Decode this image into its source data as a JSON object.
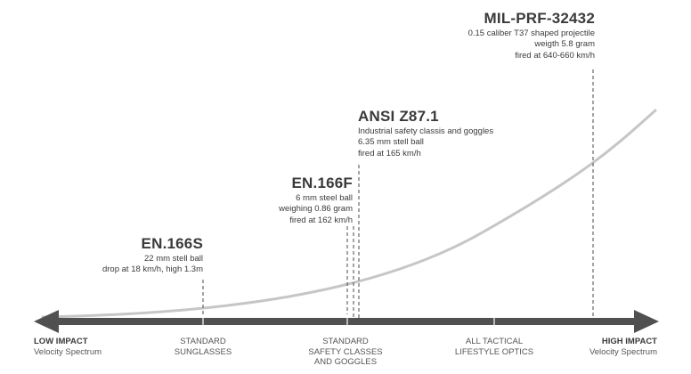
{
  "colors": {
    "axis": "#505050",
    "curve": "#c6c6c6",
    "leader": "#4a4a4a",
    "text": "#3a3a3a"
  },
  "standards": [
    {
      "id": "en166s",
      "title": "EN.166S",
      "lines": [
        "22 mm stell ball",
        "drop at 18 km/h, high 1.3m"
      ]
    },
    {
      "id": "en166f",
      "title": "EN.166F",
      "lines": [
        "6 mm steel ball",
        "weighing 0.86 gram",
        "fired at 162 km/h"
      ]
    },
    {
      "id": "ansi",
      "title": "ANSI Z87.1",
      "lines": [
        "Industrial safety classis and goggles",
        "6.35 mm stell ball",
        "fired at 165 km/h"
      ]
    },
    {
      "id": "mil",
      "title": "MIL-PRF-32432",
      "lines": [
        "0.15 caliber T37 shaped projectile",
        "weigth 5.8 gram",
        "fired at 640-660 km/h"
      ]
    }
  ],
  "axis_labels": {
    "low": {
      "title": "LOW IMPACT",
      "subtitle": "Velocity Spectrum"
    },
    "high": {
      "title": "HIGH IMPACT",
      "subtitle": "Velocity Spectrum"
    }
  },
  "categories": [
    {
      "id": "sunglasses",
      "lines": [
        "STANDARD",
        "SUNGLASSES"
      ]
    },
    {
      "id": "safety",
      "lines": [
        "STANDARD",
        "SAFETY CLASSES",
        "AND GOGGLES"
      ]
    },
    {
      "id": "tactical",
      "lines": [
        "ALL TACTICAL",
        "LIFESTYLE OPTICS"
      ]
    }
  ]
}
